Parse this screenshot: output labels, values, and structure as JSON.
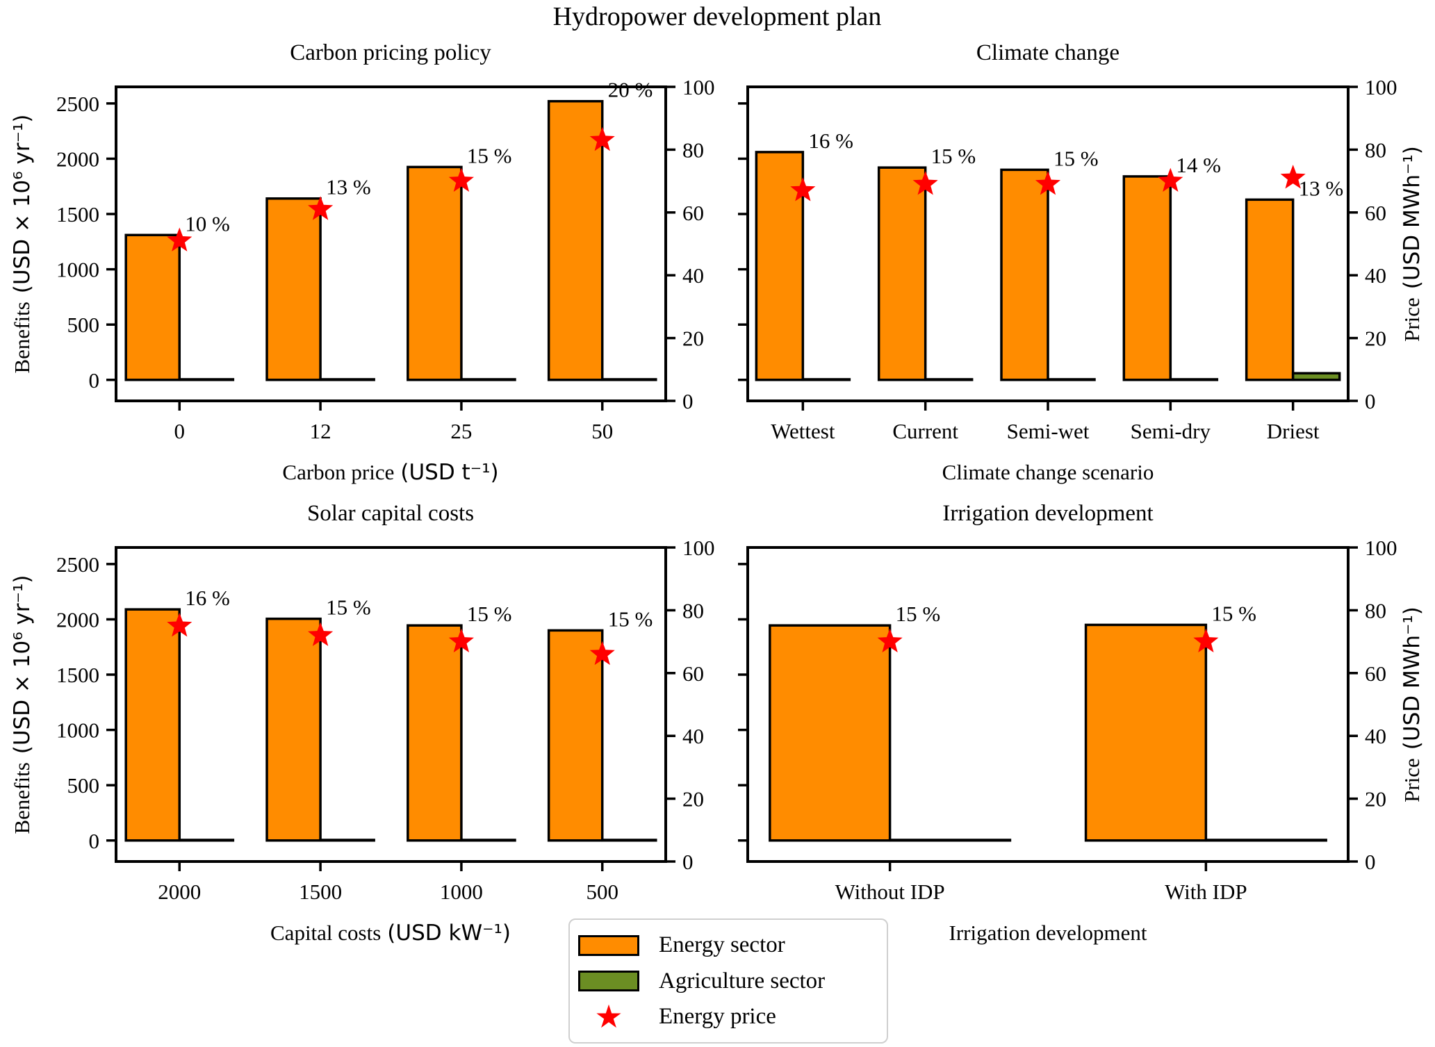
{
  "figure": {
    "title": "Hydropower development plan",
    "background": "#ffffff"
  },
  "colors": {
    "energy": "#ff8c00",
    "agriculture": "#6b8e23",
    "price_star": "#ff0000",
    "edge": "#000000"
  },
  "axes": {
    "benefits_word": "Benefits",
    "benefits_unit": "(USD × 10⁶ yr⁻¹)",
    "price_word": "Price",
    "price_unit": "(USD MWh⁻¹)",
    "left_ticks": [
      0,
      500,
      1000,
      1500,
      2000,
      2500
    ],
    "right_ticks": [
      0,
      20,
      40,
      60,
      80,
      100
    ],
    "left_range": [
      -190,
      2650
    ],
    "right_range": [
      0,
      100
    ],
    "grid": false
  },
  "legend": {
    "items": [
      {
        "label": "Energy sector",
        "swatch": "energy"
      },
      {
        "label": "Agriculture sector",
        "swatch": "agriculture"
      },
      {
        "label": "Energy price",
        "swatch": "star"
      }
    ]
  },
  "chart_data": [
    {
      "id": "carbon",
      "type": "bar",
      "title": "Carbon pricing policy",
      "xlabel_word": "Carbon price",
      "xlabel_unit": "(USD t⁻¹)",
      "categories": [
        "0",
        "12",
        "25",
        "50"
      ],
      "series": [
        {
          "name": "Energy sector",
          "values": [
            1310,
            1640,
            1925,
            2520
          ]
        },
        {
          "name": "Agriculture sector",
          "values": [
            5,
            5,
            5,
            5
          ]
        },
        {
          "name": "Energy price",
          "values": [
            51,
            61,
            70,
            83
          ]
        }
      ],
      "point_labels": [
        "10 %",
        "13 %",
        "15 %",
        "20 %"
      ]
    },
    {
      "id": "climate",
      "type": "bar",
      "title": "Climate change",
      "xlabel_word": "Climate change scenario",
      "xlabel_unit": "",
      "categories": [
        "Wettest",
        "Current",
        "Semi-wet",
        "Semi-dry",
        "Driest"
      ],
      "series": [
        {
          "name": "Energy sector",
          "values": [
            2060,
            1920,
            1900,
            1840,
            1630
          ]
        },
        {
          "name": "Agriculture sector",
          "values": [
            5,
            5,
            5,
            5,
            60
          ]
        },
        {
          "name": "Energy price",
          "values": [
            67,
            69,
            69,
            70,
            71
          ]
        }
      ],
      "point_labels": [
        "16 %",
        "15 %",
        "15 %",
        "14 %",
        "13 %"
      ]
    },
    {
      "id": "solar",
      "type": "bar",
      "title": "Solar capital costs",
      "xlabel_word": "Capital costs",
      "xlabel_unit": "(USD kW⁻¹)",
      "categories": [
        "2000",
        "1500",
        "1000",
        "500"
      ],
      "series": [
        {
          "name": "Energy sector",
          "values": [
            2090,
            2005,
            1945,
            1900
          ]
        },
        {
          "name": "Agriculture sector",
          "values": [
            5,
            5,
            5,
            5
          ]
        },
        {
          "name": "Energy price",
          "values": [
            75,
            72,
            70,
            66
          ]
        }
      ],
      "point_labels": [
        "16 %",
        "15 %",
        "15 %",
        "15 %"
      ]
    },
    {
      "id": "irrigation",
      "type": "bar",
      "title": "Irrigation development",
      "xlabel_word": "Irrigation development",
      "xlabel_unit": "",
      "categories": [
        "Without IDP",
        "With IDP"
      ],
      "series": [
        {
          "name": "Energy sector",
          "values": [
            1945,
            1950
          ]
        },
        {
          "name": "Agriculture sector",
          "values": [
            5,
            5
          ]
        },
        {
          "name": "Energy price",
          "values": [
            70,
            70
          ]
        }
      ],
      "point_labels": [
        "15 %",
        "15 %"
      ]
    }
  ]
}
